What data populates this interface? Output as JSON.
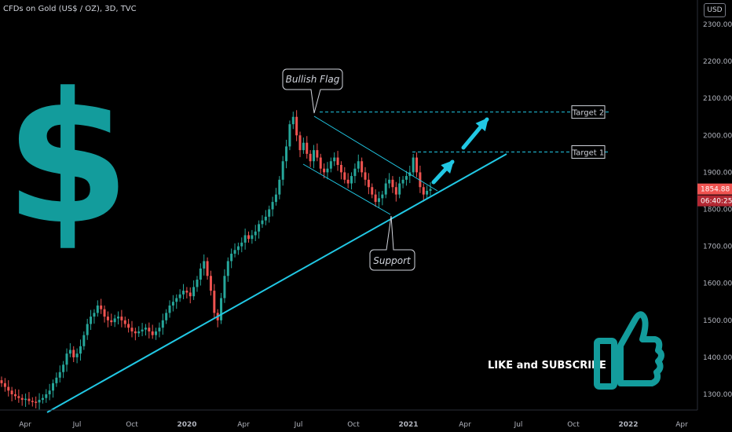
{
  "header": {
    "title": "CFDs on Gold (US$ / OZ), 3D, TVC",
    "currency_button": "USD"
  },
  "chart_data": {
    "type": "candlestick",
    "title": "CFDs on Gold (US$ / OZ), 3D, TVC",
    "ylim": [
      1240,
      2370
    ],
    "yticks": [
      1300,
      1400,
      1500,
      1600,
      1700,
      1800,
      1900,
      2000,
      2100,
      2200,
      2300
    ],
    "ytick_labels": [
      "1300.00",
      "1400.00",
      "1500.00",
      "1600.00",
      "1700.00",
      "1800.00",
      "1900.00",
      "2000.00",
      "2100.00",
      "2200.00",
      "2300.00"
    ],
    "xticks": [
      "Apr",
      "Jul",
      "Oct",
      "2020",
      "Apr",
      "Jul",
      "Oct",
      "2021",
      "Apr",
      "Jul",
      "Oct",
      "2022",
      "Apr"
    ],
    "close_series": [
      1330,
      1320,
      1310,
      1300,
      1295,
      1290,
      1285,
      1288,
      1282,
      1280,
      1278,
      1285,
      1290,
      1300,
      1310,
      1330,
      1345,
      1360,
      1380,
      1410,
      1420,
      1400,
      1410,
      1430,
      1460,
      1490,
      1510,
      1520,
      1540,
      1530,
      1510,
      1500,
      1495,
      1505,
      1510,
      1500,
      1490,
      1480,
      1470,
      1465,
      1470,
      1475,
      1480,
      1470,
      1460,
      1470,
      1480,
      1500,
      1520,
      1540,
      1550,
      1560,
      1570,
      1580,
      1575,
      1565,
      1590,
      1610,
      1640,
      1660,
      1620,
      1580,
      1520,
      1500,
      1560,
      1620,
      1660,
      1680,
      1690,
      1700,
      1710,
      1730,
      1720,
      1730,
      1740,
      1760,
      1770,
      1780,
      1800,
      1820,
      1840,
      1880,
      1930,
      1970,
      2030,
      2050,
      2000,
      1960,
      1980,
      1950,
      1930,
      1960,
      1940,
      1910,
      1900,
      1910,
      1930,
      1940,
      1920,
      1900,
      1880,
      1870,
      1890,
      1910,
      1930,
      1900,
      1880,
      1860,
      1840,
      1820,
      1830,
      1840,
      1870,
      1880,
      1860,
      1840,
      1870,
      1880,
      1890,
      1900,
      1940,
      1900,
      1860,
      1840,
      1850,
      1855
    ],
    "last_price": "1854.88",
    "countdown": "06:40:25"
  },
  "annotations": {
    "bullish_flag": "Bullish Flag",
    "support": "Support",
    "target1": "Target 1",
    "target2": "Target 2",
    "target1_price": 1955,
    "target2_price": 2063,
    "cta": "LIKE and SUBSCRIBE",
    "dollar_glyph": "$"
  },
  "colors": {
    "teal": "#139c9c",
    "cyan": "#21c8e4",
    "up": "#26a69a",
    "down": "#ef5350",
    "axis_text": "#b2b5be"
  }
}
